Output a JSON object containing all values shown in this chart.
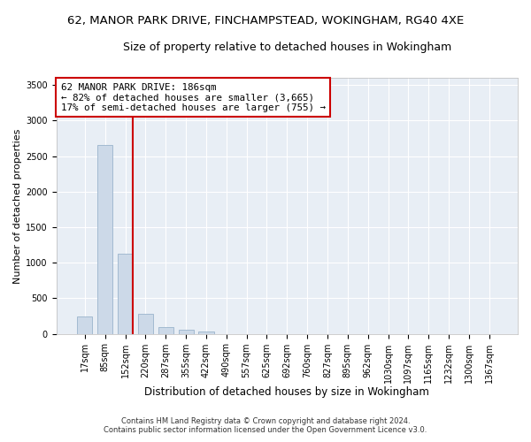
{
  "title1": "62, MANOR PARK DRIVE, FINCHAMPSTEAD, WOKINGHAM, RG40 4XE",
  "title2": "Size of property relative to detached houses in Wokingham",
  "xlabel": "Distribution of detached houses by size in Wokingham",
  "ylabel": "Number of detached properties",
  "footnote1": "Contains HM Land Registry data © Crown copyright and database right 2024.",
  "footnote2": "Contains public sector information licensed under the Open Government Licence v3.0.",
  "bar_color": "#ccd9e8",
  "bar_edge_color": "#9ab4cc",
  "vline_color": "#cc0000",
  "vline_x_index": 2,
  "annotation_text": "62 MANOR PARK DRIVE: 186sqm\n← 82% of detached houses are smaller (3,665)\n17% of semi-detached houses are larger (755) →",
  "annotation_box_facecolor": "#ffffff",
  "annotation_box_edgecolor": "#cc0000",
  "categories": [
    "17sqm",
    "85sqm",
    "152sqm",
    "220sqm",
    "287sqm",
    "355sqm",
    "422sqm",
    "490sqm",
    "557sqm",
    "625sqm",
    "692sqm",
    "760sqm",
    "827sqm",
    "895sqm",
    "962sqm",
    "1030sqm",
    "1097sqm",
    "1165sqm",
    "1232sqm",
    "1300sqm",
    "1367sqm"
  ],
  "values": [
    250,
    2650,
    1130,
    280,
    100,
    55,
    30,
    0,
    0,
    0,
    0,
    0,
    0,
    0,
    0,
    0,
    0,
    0,
    0,
    0,
    0
  ],
  "ylim": [
    0,
    3600
  ],
  "yticks": [
    0,
    500,
    1000,
    1500,
    2000,
    2500,
    3000,
    3500
  ],
  "figure_bg": "#ffffff",
  "axes_bg": "#e8eef5",
  "grid_color": "#ffffff",
  "title1_fontsize": 9.5,
  "title2_fontsize": 9,
  "tick_fontsize": 7,
  "xlabel_fontsize": 8.5,
  "ylabel_fontsize": 8,
  "footnote_fontsize": 6,
  "annotation_fontsize": 7.8
}
